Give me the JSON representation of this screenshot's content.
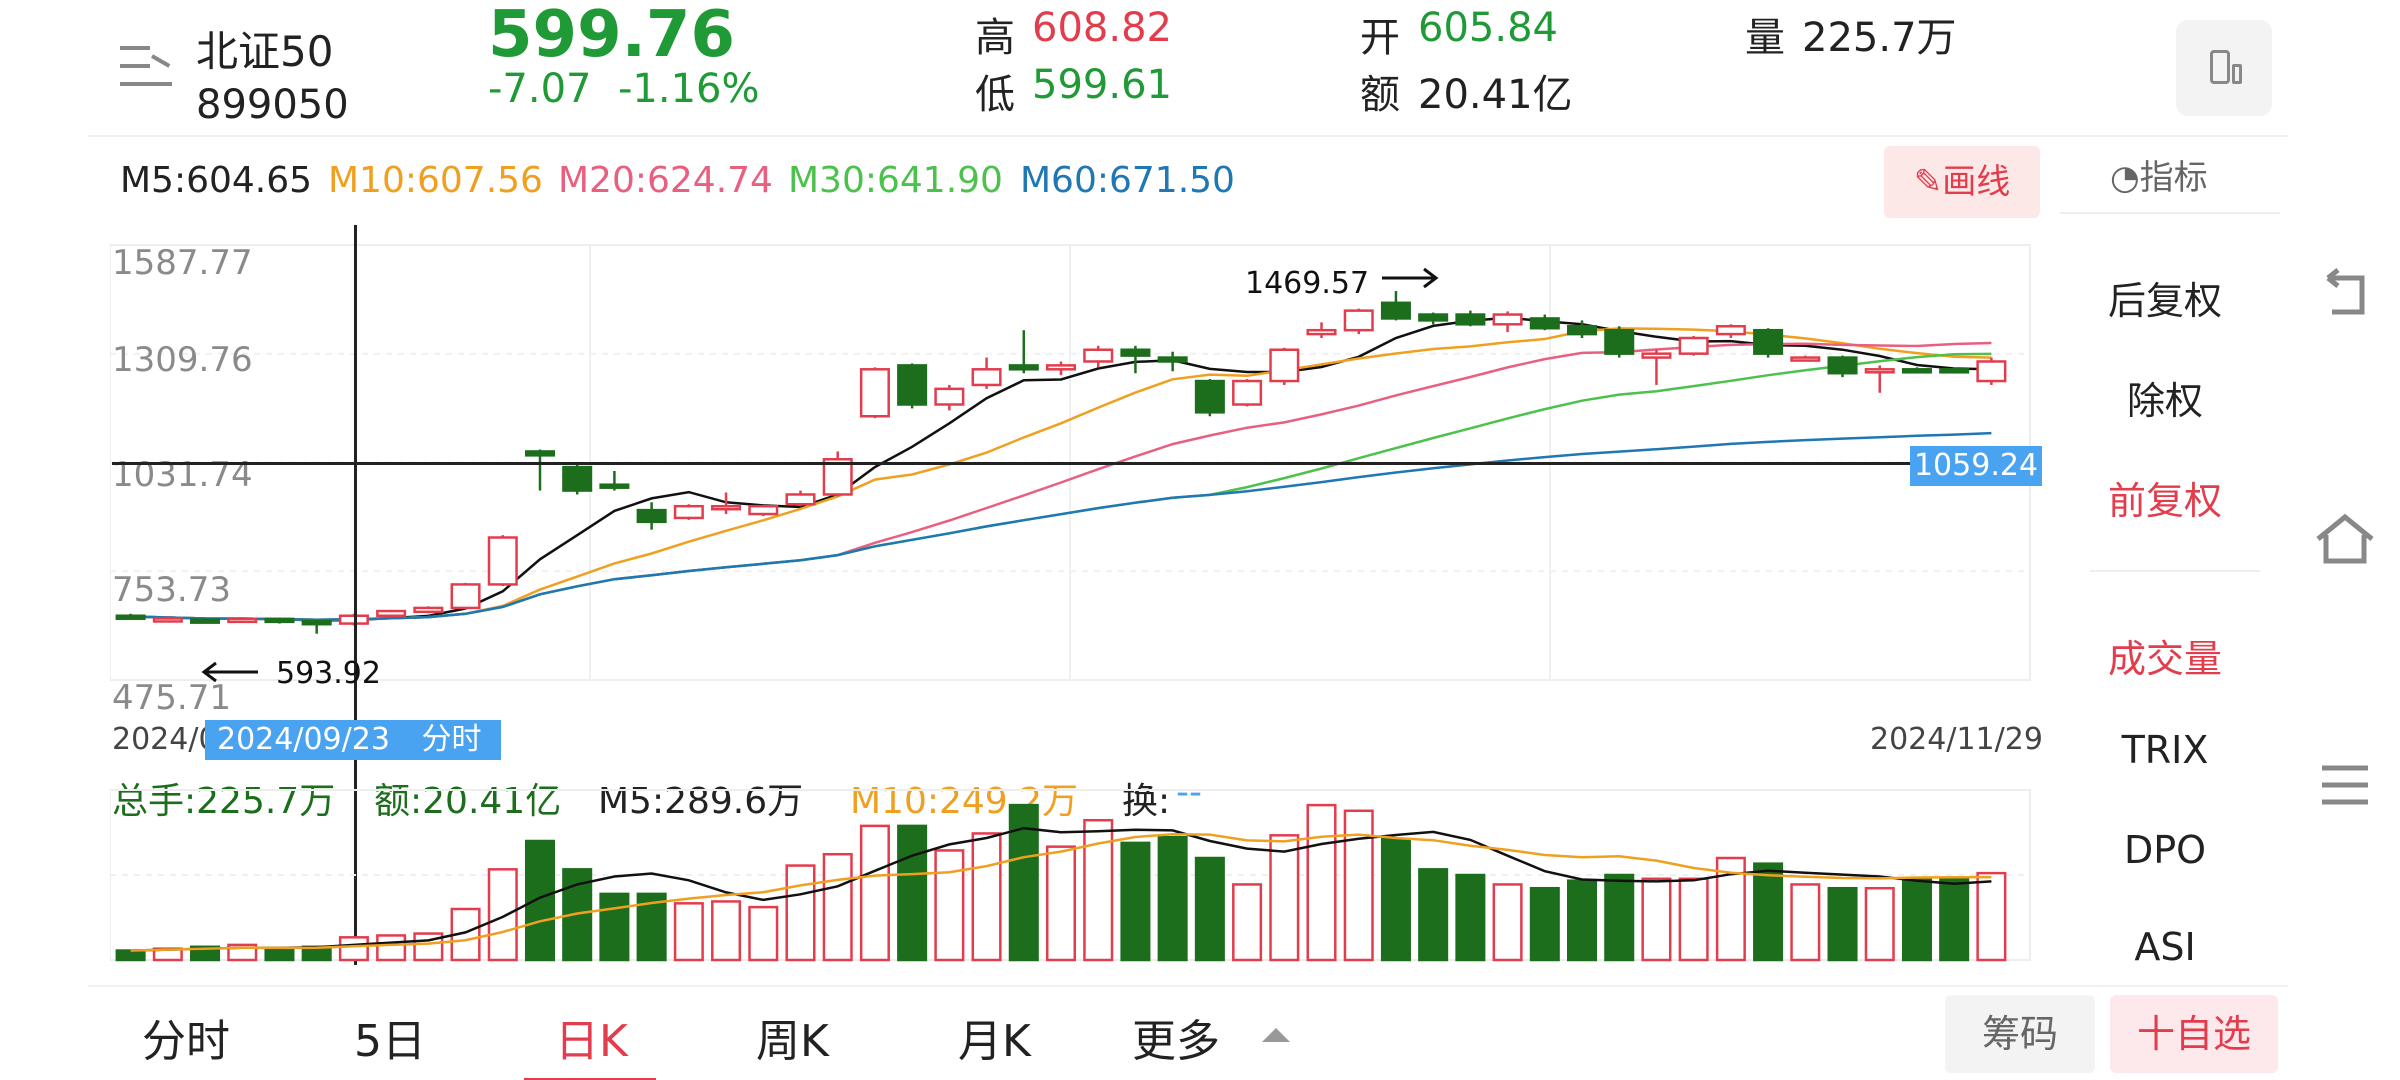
{
  "header": {
    "name": "北证50",
    "code": "899050",
    "price": "599.76",
    "change": "-7.07",
    "change_pct": "-1.16%",
    "high_label": "高",
    "high": "608.82",
    "low_label": "低",
    "low": "599.61",
    "open_label": "开",
    "open": "605.84",
    "amount_label": "额",
    "amount": "20.41亿",
    "volume_label": "量",
    "volume": "225.7万"
  },
  "ma_bar": {
    "m5": "M5:604.65",
    "m10": "M10:607.56",
    "m20": "M20:624.74",
    "m30": "M30:641.90",
    "m60": "M60:671.50",
    "draw_label": "画线"
  },
  "price_axis": [
    "1587.77",
    "1309.76",
    "1031.74",
    "753.73",
    "475.71"
  ],
  "annotations": {
    "high_mark": "1469.57",
    "low_mark": "593.92",
    "crosshair_value": "1059.24",
    "crosshair_date": "2024/09/23",
    "crosshair_link": "分时 >",
    "date_start": "2024/0",
    "date_end": "2024/11/29"
  },
  "volume_bar": {
    "total": "总手:225.7万",
    "amount": "额:20.41亿",
    "m5": "M5:289.6万",
    "m10": "M10:249.2万",
    "turnover_label": "换:",
    "turnover_value": "--"
  },
  "side_panel": {
    "indicator_label": "指标",
    "items": [
      "后复权",
      "除权",
      "前复权",
      "成交量",
      "TRIX",
      "DPO",
      "ASI"
    ]
  },
  "tabs": [
    "分时",
    "5日",
    "日K",
    "周K",
    "月K",
    "更多"
  ],
  "active_tab": "日K",
  "bottom_buttons": {
    "chips": "筹码",
    "add_watch": "十自选"
  },
  "colors": {
    "up": "#e23d4d",
    "down": "#1c6e1c",
    "ma5": "#111111",
    "ma10": "#f0a020",
    "ma20": "#e8607f",
    "ma30": "#4cc14c",
    "ma60": "#1f77b4",
    "accent_blue": "#4aa3f0"
  },
  "chart_data": {
    "type": "candlestick",
    "ylim": [
      475.71,
      1587.77
    ],
    "candles": [
      {
        "o": 640,
        "c": 638,
        "h": 645,
        "l": 632,
        "v": 5
      },
      {
        "o": 632,
        "c": 633,
        "h": 638,
        "l": 628,
        "v": 6
      },
      {
        "o": 630,
        "c": 628,
        "h": 634,
        "l": 624,
        "v": 7
      },
      {
        "o": 628,
        "c": 632,
        "h": 636,
        "l": 624,
        "v": 8
      },
      {
        "o": 632,
        "c": 626,
        "h": 634,
        "l": 620,
        "v": 6
      },
      {
        "o": 626,
        "c": 620,
        "h": 628,
        "l": 594,
        "v": 7
      },
      {
        "o": 620,
        "c": 640,
        "h": 645,
        "l": 615,
        "v": 12
      },
      {
        "o": 640,
        "c": 652,
        "h": 655,
        "l": 636,
        "v": 13
      },
      {
        "o": 650,
        "c": 660,
        "h": 664,
        "l": 646,
        "v": 14
      },
      {
        "o": 660,
        "c": 720,
        "h": 724,
        "l": 656,
        "v": 27
      },
      {
        "o": 720,
        "c": 840,
        "h": 846,
        "l": 716,
        "v": 48
      },
      {
        "o": 1060,
        "c": 1050,
        "h": 1065,
        "l": 960,
        "v": 63
      },
      {
        "o": 1020,
        "c": 960,
        "h": 1030,
        "l": 950,
        "v": 48
      },
      {
        "o": 975,
        "c": 970,
        "h": 1010,
        "l": 960,
        "v": 35
      },
      {
        "o": 910,
        "c": 880,
        "h": 930,
        "l": 860,
        "v": 35
      },
      {
        "o": 890,
        "c": 920,
        "h": 925,
        "l": 885,
        "v": 30
      },
      {
        "o": 920,
        "c": 920,
        "h": 955,
        "l": 900,
        "v": 31
      },
      {
        "o": 900,
        "c": 920,
        "h": 922,
        "l": 895,
        "v": 28
      },
      {
        "o": 925,
        "c": 950,
        "h": 960,
        "l": 920,
        "v": 50
      },
      {
        "o": 950,
        "c": 1040,
        "h": 1060,
        "l": 945,
        "v": 56
      },
      {
        "o": 1150,
        "c": 1270,
        "h": 1275,
        "l": 1145,
        "v": 71
      },
      {
        "o": 1280,
        "c": 1180,
        "h": 1285,
        "l": 1170,
        "v": 71
      },
      {
        "o": 1180,
        "c": 1220,
        "h": 1230,
        "l": 1165,
        "v": 58
      },
      {
        "o": 1230,
        "c": 1270,
        "h": 1300,
        "l": 1220,
        "v": 67
      },
      {
        "o": 1280,
        "c": 1270,
        "h": 1370,
        "l": 1260,
        "v": 82
      },
      {
        "o": 1270,
        "c": 1280,
        "h": 1290,
        "l": 1255,
        "v": 60
      },
      {
        "o": 1290,
        "c": 1320,
        "h": 1330,
        "l": 1275,
        "v": 74
      },
      {
        "o": 1320,
        "c": 1305,
        "h": 1330,
        "l": 1260,
        "v": 62
      },
      {
        "o": 1300,
        "c": 1290,
        "h": 1315,
        "l": 1265,
        "v": 65
      },
      {
        "o": 1240,
        "c": 1160,
        "h": 1245,
        "l": 1150,
        "v": 54
      },
      {
        "o": 1180,
        "c": 1240,
        "h": 1245,
        "l": 1175,
        "v": 40
      },
      {
        "o": 1240,
        "c": 1320,
        "h": 1325,
        "l": 1230,
        "v": 66
      },
      {
        "o": 1360,
        "c": 1370,
        "h": 1390,
        "l": 1350,
        "v": 82
      },
      {
        "o": 1370,
        "c": 1420,
        "h": 1425,
        "l": 1360,
        "v": 79
      },
      {
        "o": 1440,
        "c": 1400,
        "h": 1470,
        "l": 1395,
        "v": 64
      },
      {
        "o": 1410,
        "c": 1395,
        "h": 1415,
        "l": 1385,
        "v": 48
      },
      {
        "o": 1410,
        "c": 1385,
        "h": 1420,
        "l": 1380,
        "v": 45
      },
      {
        "o": 1385,
        "c": 1410,
        "h": 1418,
        "l": 1365,
        "v": 40
      },
      {
        "o": 1400,
        "c": 1375,
        "h": 1410,
        "l": 1370,
        "v": 38
      },
      {
        "o": 1380,
        "c": 1360,
        "h": 1395,
        "l": 1350,
        "v": 42
      },
      {
        "o": 1370,
        "c": 1310,
        "h": 1380,
        "l": 1300,
        "v": 45
      },
      {
        "o": 1300,
        "c": 1310,
        "h": 1320,
        "l": 1230,
        "v": 43
      },
      {
        "o": 1310,
        "c": 1350,
        "h": 1355,
        "l": 1305,
        "v": 43
      },
      {
        "o": 1360,
        "c": 1380,
        "h": 1385,
        "l": 1350,
        "v": 54
      },
      {
        "o": 1370,
        "c": 1310,
        "h": 1375,
        "l": 1300,
        "v": 51
      },
      {
        "o": 1300,
        "c": 1300,
        "h": 1305,
        "l": 1290,
        "v": 40
      },
      {
        "o": 1300,
        "c": 1260,
        "h": 1305,
        "l": 1250,
        "v": 38
      },
      {
        "o": 1270,
        "c": 1270,
        "h": 1280,
        "l": 1210,
        "v": 38
      },
      {
        "o": 1270,
        "c": 1265,
        "h": 1275,
        "l": 1260,
        "v": 43
      },
      {
        "o": 1270,
        "c": 1265,
        "h": 1275,
        "l": 1260,
        "v": 43
      },
      {
        "o": 1240,
        "c": 1290,
        "h": 1300,
        "l": 1230,
        "v": 46
      }
    ],
    "volume_ylim": [
      0,
      90
    ]
  }
}
